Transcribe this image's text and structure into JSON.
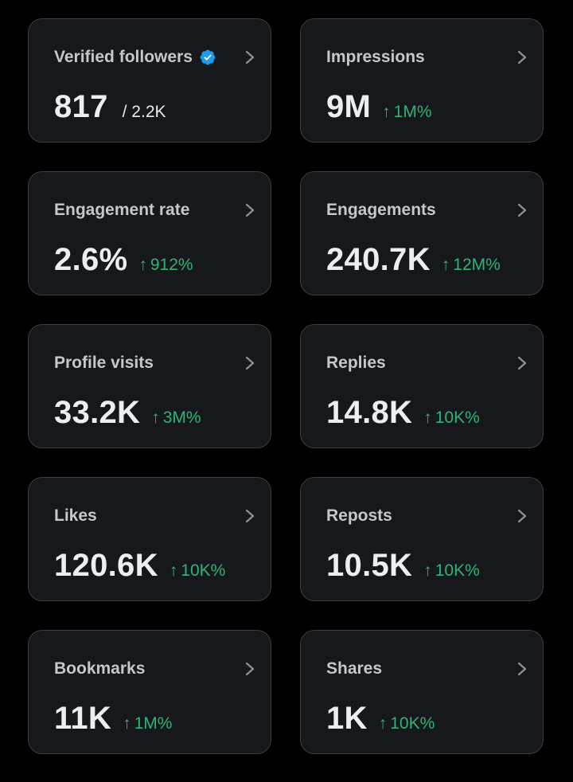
{
  "accent_colors": {
    "positive": "#2fb377",
    "verified": "#1d9bf0",
    "card_bg": "#16181c",
    "card_border": "#3a3d42"
  },
  "cards": [
    {
      "title": "Verified followers",
      "value": "817",
      "total": "/ 2.2K",
      "change": "",
      "verified_icon": "verified-badge-icon"
    },
    {
      "title": "Impressions",
      "value": "9M",
      "change": "1M%"
    },
    {
      "title": "Engagement rate",
      "value": "2.6%",
      "change": "912%"
    },
    {
      "title": "Engagements",
      "value": "240.7K",
      "change": "12M%"
    },
    {
      "title": "Profile visits",
      "value": "33.2K",
      "change": "3M%"
    },
    {
      "title": "Replies",
      "value": "14.8K",
      "change": "10K%"
    },
    {
      "title": "Likes",
      "value": "120.6K",
      "change": "10K%"
    },
    {
      "title": "Reposts",
      "value": "10.5K",
      "change": "10K%"
    },
    {
      "title": "Bookmarks",
      "value": "11K",
      "change": "1M%"
    },
    {
      "title": "Shares",
      "value": "1K",
      "change": "10K%"
    }
  ],
  "icons": {
    "chevron": "chevron-right-icon",
    "arrow": "arrow-up-icon"
  },
  "arrow_glyph": "↑"
}
